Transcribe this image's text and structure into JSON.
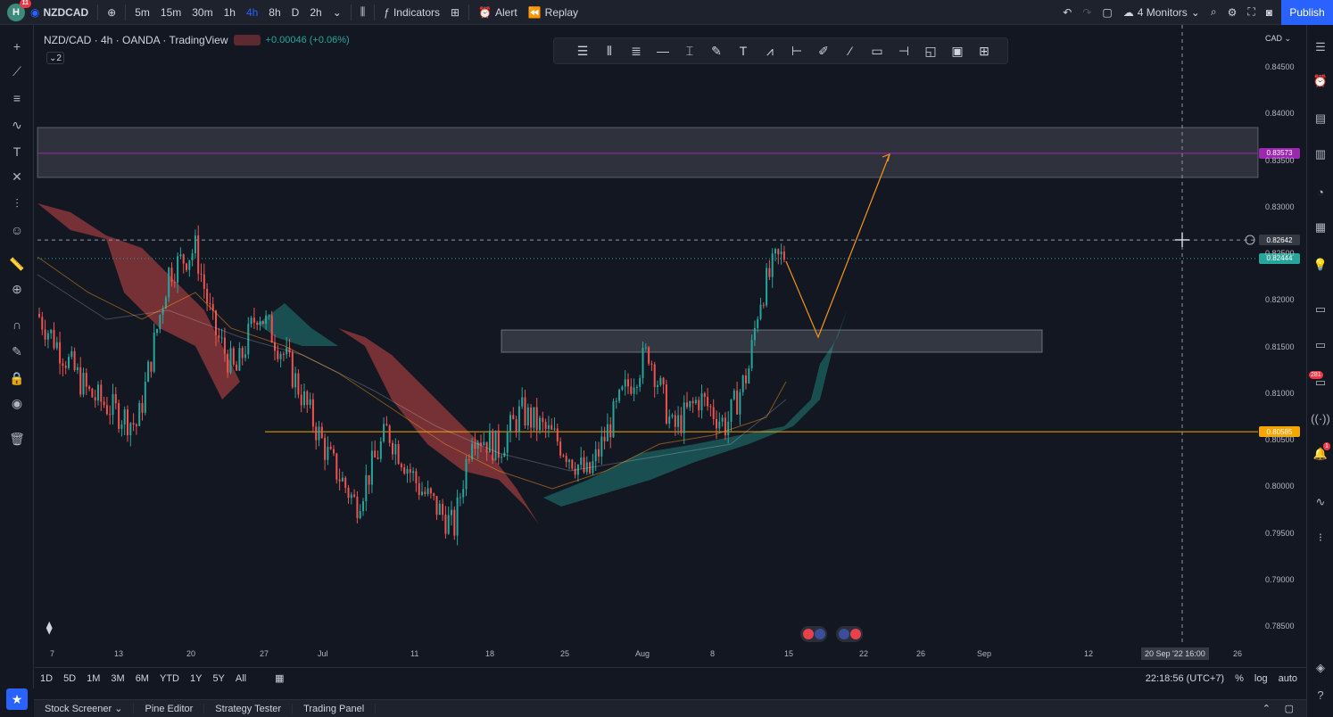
{
  "topbar": {
    "avatar": "H",
    "avatar_badge": "11",
    "symbol": "NZDCAD",
    "intervals": [
      "5m",
      "15m",
      "30m",
      "1h",
      "4h",
      "8h",
      "D",
      "2h"
    ],
    "active_interval": "4h",
    "indicators_label": "Indicators",
    "alert_label": "Alert",
    "replay_label": "Replay",
    "monitors_label": "4 Monitors",
    "publish_label": "Publish"
  },
  "legend": {
    "title": "NZD/CAD · 4h · OANDA · TradingView",
    "change": "+0.00046 (+0.06%)",
    "indicator_count": "2"
  },
  "price_axis": {
    "currency": "CAD",
    "ticks": [
      "0.84500",
      "0.84000",
      "0.83500",
      "0.83000",
      "0.82500",
      "0.82000",
      "0.81500",
      "0.81000",
      "0.80500",
      "0.80000",
      "0.79500",
      "0.79000",
      "0.78500"
    ],
    "labels": {
      "resistance": "0.83573",
      "crosshair": "0.82642",
      "last_price": "0.82444",
      "support": "0.80585"
    }
  },
  "time_axis": {
    "ticks": [
      "7",
      "13",
      "20",
      "27",
      "Jul",
      "11",
      "18",
      "25",
      "Aug",
      "8",
      "15",
      "22",
      "26",
      "Sep",
      "12",
      "26"
    ],
    "crosshair_time": "20 Sep '22   16:00"
  },
  "bottom_bar": {
    "ranges": [
      "1D",
      "5D",
      "1M",
      "3M",
      "6M",
      "YTD",
      "1Y",
      "5Y",
      "All"
    ],
    "clock": "22:18:56 (UTC+7)",
    "percent_label": "%",
    "log_label": "log",
    "auto_label": "auto"
  },
  "panels": [
    "Stock Screener",
    "Pine Editor",
    "Strategy Tester",
    "Trading Panel"
  ],
  "right_badges": {
    "alerts_count": "281",
    "notif_count": "1"
  },
  "colors": {
    "background": "#131722",
    "up": "#26a69a",
    "down": "#ef5350",
    "accent": "#2962ff",
    "projection": "#f7931a",
    "resistance_line": "#9c27b0",
    "support_line": "#f7a600"
  }
}
